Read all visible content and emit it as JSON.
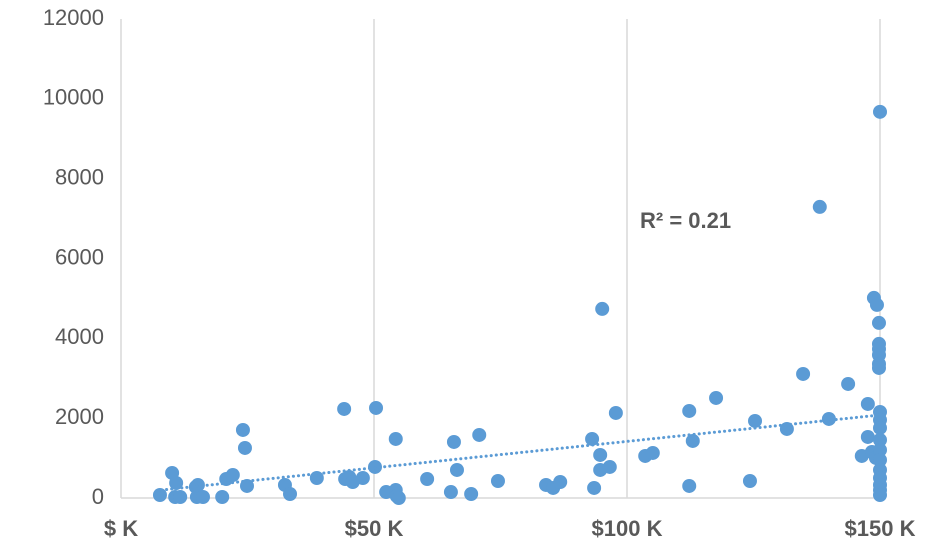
{
  "chart_data": {
    "type": "scatter",
    "color": "#5b9bd5",
    "x": [
      7.7,
      10.1,
      10.9,
      10.7,
      11.7,
      14.8,
      15.0,
      16.2,
      15.2,
      20.0,
      20.8,
      22.1,
      24.1,
      24.5,
      24.9,
      32.4,
      33.4,
      38.7,
      44.1,
      44.3,
      45.1,
      45.8,
      47.8,
      50.2,
      50.4,
      52.4,
      54.3,
      54.5,
      54.9,
      54.3,
      60.5,
      65.2,
      65.8,
      66.4,
      69.2,
      70.8,
      74.5,
      84.0,
      85.4,
      86.8,
      93.1,
      93.5,
      95.1,
      94.7,
      94.7,
      96.6,
      97.8,
      103.6,
      105.1,
      112.3,
      112.3,
      113.0,
      117.6,
      124.3,
      125.3,
      131.6,
      134.8,
      139.9,
      138.1,
      143.7,
      146.4,
      147.6,
      147.6,
      148.4,
      149.2,
      148.8,
      149.4,
      149.8,
      149.8,
      149.8,
      149.8,
      149.8,
      149.8,
      150,
      150,
      150,
      150,
      150,
      150,
      150,
      150,
      150,
      150,
      150,
      150
    ],
    "y": [
      75,
      627,
      376,
      25,
      25,
      276,
      25,
      25,
      326,
      25,
      476,
      576,
      1704,
      1253,
      301,
      326,
      100,
      501,
      2231,
      476,
      526,
      401,
      501,
      777,
      2256,
      150,
      200,
      50,
      0,
      1479,
      476,
      150,
      1404,
      702,
      100,
      1579,
      426,
      326,
      251,
      401,
      1479,
      251,
      4737,
      702,
      1078,
      777,
      2130,
      1053,
      1128,
      2180,
      301,
      1429,
      2506,
      426,
      1930,
      1729,
      3108,
      1980,
      7293,
      2857,
      1053,
      2356,
      1529,
      1153,
      1003,
      5013,
      4837,
      4386,
      3860,
      3734,
      3584,
      3358,
      3258,
      9674,
      2155,
      1955,
      1754,
      1454,
      1203,
      952,
      702,
      501,
      326,
      200,
      75
    ],
    "trendline": {
      "x": [
        8,
        150
      ],
      "y": [
        200,
        2080
      ]
    },
    "annotation": "R² = 0.21",
    "xlim": [
      0,
      150
    ],
    "ylim": [
      0,
      12000
    ],
    "xticks": [
      {
        "value": 0,
        "label": "$ K"
      },
      {
        "value": 50,
        "label": "$50 K"
      },
      {
        "value": 100,
        "label": "$100 K"
      },
      {
        "value": 150,
        "label": "$150 K"
      }
    ],
    "yticks": [
      0,
      2000,
      4000,
      6000,
      8000,
      10000,
      12000
    ],
    "grid": true
  }
}
